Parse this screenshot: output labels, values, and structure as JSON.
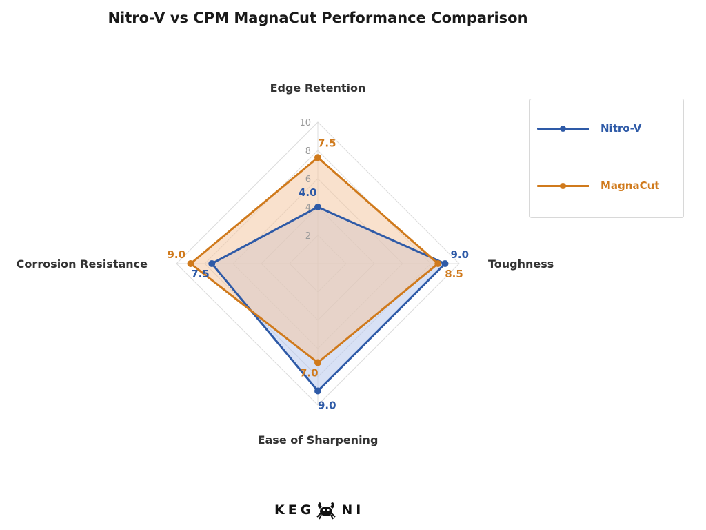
{
  "chart_data": {
    "type": "radar",
    "title": "Nitro-V vs CPM MagnaCut Performance Comparison",
    "axes": [
      "Edge Retention",
      "Toughness",
      "Ease of Sharpening",
      "Corrosion Resistance"
    ],
    "rlim": [
      0,
      10
    ],
    "ticks": [
      "2",
      "4",
      "6",
      "8",
      "10"
    ],
    "grid": true,
    "legend_position": "top-right",
    "series": [
      {
        "name": "Nitro-V",
        "color": "#2e5aa7",
        "fill": "#b8c8ec",
        "values": [
          4.0,
          9.0,
          9.0,
          7.5
        ],
        "labels": [
          "4.0",
          "9.0",
          "9.0",
          "7.5"
        ]
      },
      {
        "name": "MagnaCut",
        "color": "#d07a1c",
        "fill": "#f4c8a4",
        "values": [
          7.5,
          8.5,
          7.0,
          9.0
        ],
        "labels": [
          "7.5",
          "8.5",
          "7.0",
          "9.0"
        ]
      }
    ]
  },
  "logo": {
    "text_left": "KEG",
    "text_right": "NI"
  }
}
